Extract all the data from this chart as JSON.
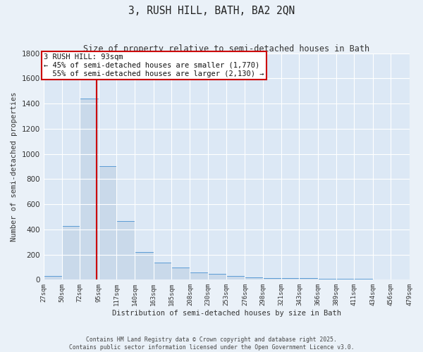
{
  "title": "3, RUSH HILL, BATH, BA2 2QN",
  "subtitle": "Size of property relative to semi-detached houses in Bath",
  "xlabel": "Distribution of semi-detached houses by size in Bath",
  "ylabel": "Number of semi-detached properties",
  "bin_edges": [
    27,
    50,
    72,
    95,
    117,
    140,
    163,
    185,
    208,
    230,
    253,
    276,
    298,
    321,
    343,
    366,
    389,
    411,
    434,
    456,
    479
  ],
  "bar_heights": [
    30,
    425,
    1440,
    900,
    465,
    220,
    135,
    95,
    60,
    45,
    30,
    20,
    15,
    12,
    12,
    10,
    10,
    10,
    0,
    0
  ],
  "bar_color": "#c9d9ea",
  "bar_edge_color": "#5b9bd5",
  "property_size": 93,
  "red_line_color": "#cc0000",
  "annotation_line1": "3 RUSH HILL: 93sqm",
  "annotation_line2": "← 45% of semi-detached houses are smaller (1,770)",
  "annotation_line3": "  55% of semi-detached houses are larger (2,130) →",
  "annotation_box_color": "#ffffff",
  "annotation_edge_color": "#cc0000",
  "ylim_max": 1800,
  "yticks": [
    0,
    200,
    400,
    600,
    800,
    1000,
    1200,
    1400,
    1600,
    1800
  ],
  "plot_bg_color": "#dce8f5",
  "fig_bg_color": "#eaf1f8",
  "grid_color": "#ffffff",
  "footer_line1": "Contains HM Land Registry data © Crown copyright and database right 2025.",
  "footer_line2": "Contains public sector information licensed under the Open Government Licence v3.0."
}
